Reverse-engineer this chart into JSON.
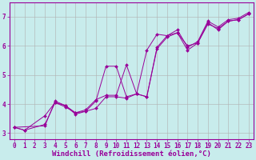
{
  "xlabel": "Windchill (Refroidissement éolien,°C)",
  "background_color": "#c8ecec",
  "grid_color": "#b0b0b0",
  "line_color": "#990099",
  "xlim": [
    -0.5,
    23.5
  ],
  "ylim": [
    2.8,
    7.5
  ],
  "yticks": [
    3,
    4,
    5,
    6,
    7
  ],
  "xticks": [
    0,
    1,
    2,
    3,
    4,
    5,
    6,
    7,
    8,
    9,
    10,
    11,
    12,
    13,
    14,
    15,
    16,
    17,
    18,
    19,
    20,
    21,
    22,
    23
  ],
  "series1_x": [
    0,
    1,
    3,
    4,
    5,
    6,
    7,
    8,
    9,
    10,
    11,
    12,
    13,
    14,
    15,
    16,
    17,
    18,
    19,
    20,
    21,
    22,
    23
  ],
  "series1_y": [
    3.2,
    3.1,
    3.3,
    4.05,
    3.9,
    3.7,
    3.75,
    3.85,
    4.25,
    4.25,
    4.2,
    4.35,
    4.25,
    5.95,
    6.35,
    6.45,
    5.85,
    6.1,
    6.75,
    6.6,
    6.85,
    6.9,
    7.1
  ],
  "series2_x": [
    0,
    1,
    3,
    4,
    5,
    6,
    7,
    8,
    9,
    10,
    11,
    12,
    13,
    14,
    15,
    16,
    17,
    18,
    19,
    20,
    21,
    22,
    23
  ],
  "series2_y": [
    3.2,
    3.1,
    3.6,
    4.05,
    3.95,
    3.65,
    3.75,
    4.1,
    5.3,
    5.3,
    4.25,
    4.35,
    4.25,
    5.9,
    6.3,
    6.45,
    6.0,
    6.1,
    6.8,
    6.55,
    6.85,
    6.9,
    7.1
  ],
  "series3_x": [
    0,
    3,
    4,
    5,
    6,
    7,
    8,
    9,
    10,
    11,
    12,
    13,
    14,
    15,
    16,
    17,
    18,
    19,
    20,
    21,
    22,
    23
  ],
  "series3_y": [
    3.2,
    3.25,
    4.1,
    3.95,
    3.7,
    3.8,
    4.15,
    4.3,
    4.3,
    5.35,
    4.35,
    5.85,
    6.4,
    6.35,
    6.55,
    5.95,
    6.15,
    6.85,
    6.65,
    6.9,
    6.95,
    7.15
  ],
  "tick_fontsize": 5.5,
  "xlabel_fontsize": 6.5
}
